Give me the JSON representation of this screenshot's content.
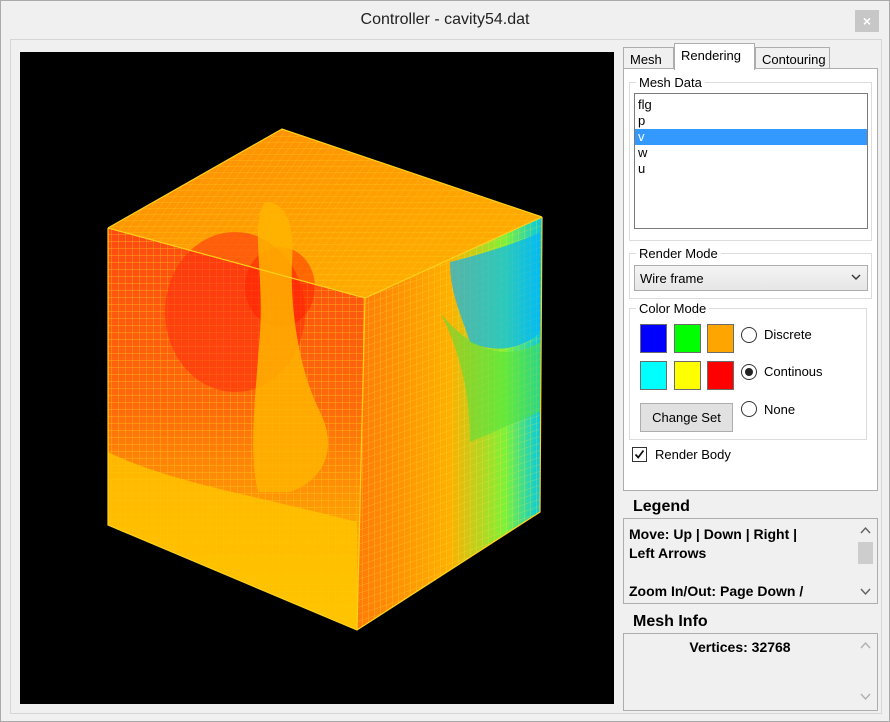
{
  "window": {
    "title": "Controller - cavity54.dat",
    "close_glyph": "×"
  },
  "tabs": [
    {
      "label": "Mesh",
      "active": false
    },
    {
      "label": "Rendering",
      "active": true
    },
    {
      "label": "Contouring",
      "active": false
    }
  ],
  "mesh_data": {
    "group_label": "Mesh Data",
    "items": [
      "flg",
      "p",
      "v",
      "w",
      "u"
    ],
    "selected": "v"
  },
  "render_mode": {
    "group_label": "Render Mode",
    "selected": "Wire frame"
  },
  "color_mode": {
    "group_label": "Color Mode",
    "swatches": [
      "#0000ff",
      "#00ff00",
      "#ffa500",
      "#00ffff",
      "#ffff00",
      "#ff0000"
    ],
    "options": [
      {
        "label": "Discrete",
        "checked": false
      },
      {
        "label": "Continous",
        "checked": true
      },
      {
        "label": "None",
        "checked": false
      }
    ],
    "change_set_label": "Change Set"
  },
  "render_body": {
    "label": "Render Body",
    "checked": true
  },
  "legend": {
    "title": "Legend",
    "line1": "Move: Up | Down | Right |",
    "line2": "Left Arrows",
    "line3": "Zoom In/Out: Page Down /"
  },
  "mesh_info": {
    "title": "Mesh Info",
    "vertices_text": "Vertices: 32768"
  },
  "icons": {
    "close": "close-icon",
    "dropdown": "chevron-down-icon",
    "scroll_up": "scroll-up-arrow-icon",
    "scroll_down": "scroll-down-arrow-icon",
    "check": "checkmark-icon"
  }
}
